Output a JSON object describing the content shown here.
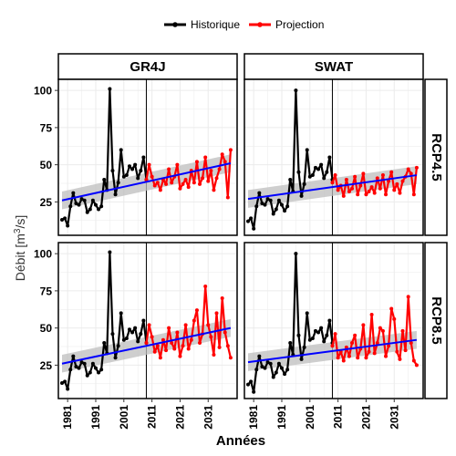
{
  "chart_data": {
    "type": "line",
    "xlabel": "Années",
    "ylabel": "Débit [m³/s]",
    "ylabel_base": "Débit [m",
    "ylabel_sup": "3",
    "ylabel_end": "/s]",
    "x_ticks": [
      "1981",
      "1991",
      "2001",
      "2011",
      "2021",
      "2031"
    ],
    "y_ticks": [
      "25",
      "50",
      "75",
      "100"
    ],
    "xlim": [
      1979,
      2040
    ],
    "ylim": [
      5,
      105
    ],
    "split_year": 2009,
    "legend": {
      "position": "top",
      "items": [
        {
          "name": "Historique",
          "color": "#000000"
        },
        {
          "name": "Projection",
          "color": "#ff0000"
        }
      ]
    },
    "facet_columns": [
      "GR4J",
      "SWAT"
    ],
    "facet_rows": [
      "RCP4.5",
      "RCP8.5"
    ],
    "historic": {
      "x": [
        1979,
        1980,
        1981,
        1982,
        1983,
        1984,
        1985,
        1986,
        1987,
        1988,
        1989,
        1990,
        1991,
        1992,
        1993,
        1994,
        1995,
        1996,
        1997,
        1998,
        1999,
        2000,
        2001,
        2002,
        2003,
        2004,
        2005,
        2006,
        2007,
        2008,
        2009
      ],
      "GR4J": [
        13,
        14,
        9,
        22,
        31,
        24,
        23,
        27,
        26,
        18,
        20,
        26,
        23,
        20,
        22,
        40,
        33,
        101,
        46,
        30,
        38,
        60,
        42,
        43,
        49,
        47,
        50,
        41,
        46,
        55,
        40
      ],
      "SWAT": [
        12,
        14,
        7,
        22,
        31,
        24,
        23,
        27,
        26,
        17,
        20,
        26,
        23,
        19,
        22,
        40,
        32,
        100,
        45,
        29,
        37,
        60,
        42,
        43,
        48,
        47,
        50,
        41,
        45,
        55,
        40
      ]
    },
    "projection": {
      "x": [
        2009,
        2010,
        2011,
        2012,
        2013,
        2014,
        2015,
        2016,
        2017,
        2018,
        2019,
        2020,
        2021,
        2022,
        2023,
        2024,
        2025,
        2026,
        2027,
        2028,
        2029,
        2030,
        2031,
        2032,
        2033,
        2034,
        2035,
        2036,
        2037,
        2038,
        2039
      ],
      "GR4J_RCP4.5": [
        40,
        50,
        42,
        36,
        38,
        33,
        40,
        37,
        47,
        38,
        42,
        50,
        34,
        37,
        40,
        35,
        46,
        38,
        52,
        37,
        41,
        55,
        39,
        46,
        33,
        41,
        47,
        57,
        52,
        28,
        60
      ],
      "SWAT_RCP4.5": [
        38,
        43,
        33,
        36,
        29,
        40,
        32,
        34,
        42,
        30,
        36,
        44,
        30,
        32,
        35,
        31,
        41,
        34,
        43,
        30,
        39,
        45,
        33,
        37,
        31,
        39,
        42,
        47,
        44,
        30,
        48
      ],
      "GR4J_RCP8.5": [
        40,
        52,
        44,
        34,
        38,
        30,
        42,
        35,
        50,
        40,
        36,
        47,
        31,
        38,
        52,
        36,
        42,
        55,
        62,
        40,
        46,
        78,
        52,
        44,
        32,
        60,
        37,
        70,
        47,
        38,
        30
      ],
      "SWAT_RCP8.5": [
        38,
        46,
        30,
        34,
        28,
        37,
        31,
        40,
        45,
        30,
        36,
        52,
        30,
        34,
        59,
        33,
        40,
        50,
        48,
        31,
        38,
        63,
        56,
        34,
        29,
        48,
        35,
        71,
        40,
        28,
        25
      ]
    },
    "trend": {
      "GR4J_RCP4.5": [
        26,
        51
      ],
      "SWAT_RCP4.5": [
        27,
        43
      ],
      "GR4J_RCP8.5": [
        26,
        50
      ],
      "SWAT_RCP8.5": [
        27,
        42
      ]
    }
  }
}
